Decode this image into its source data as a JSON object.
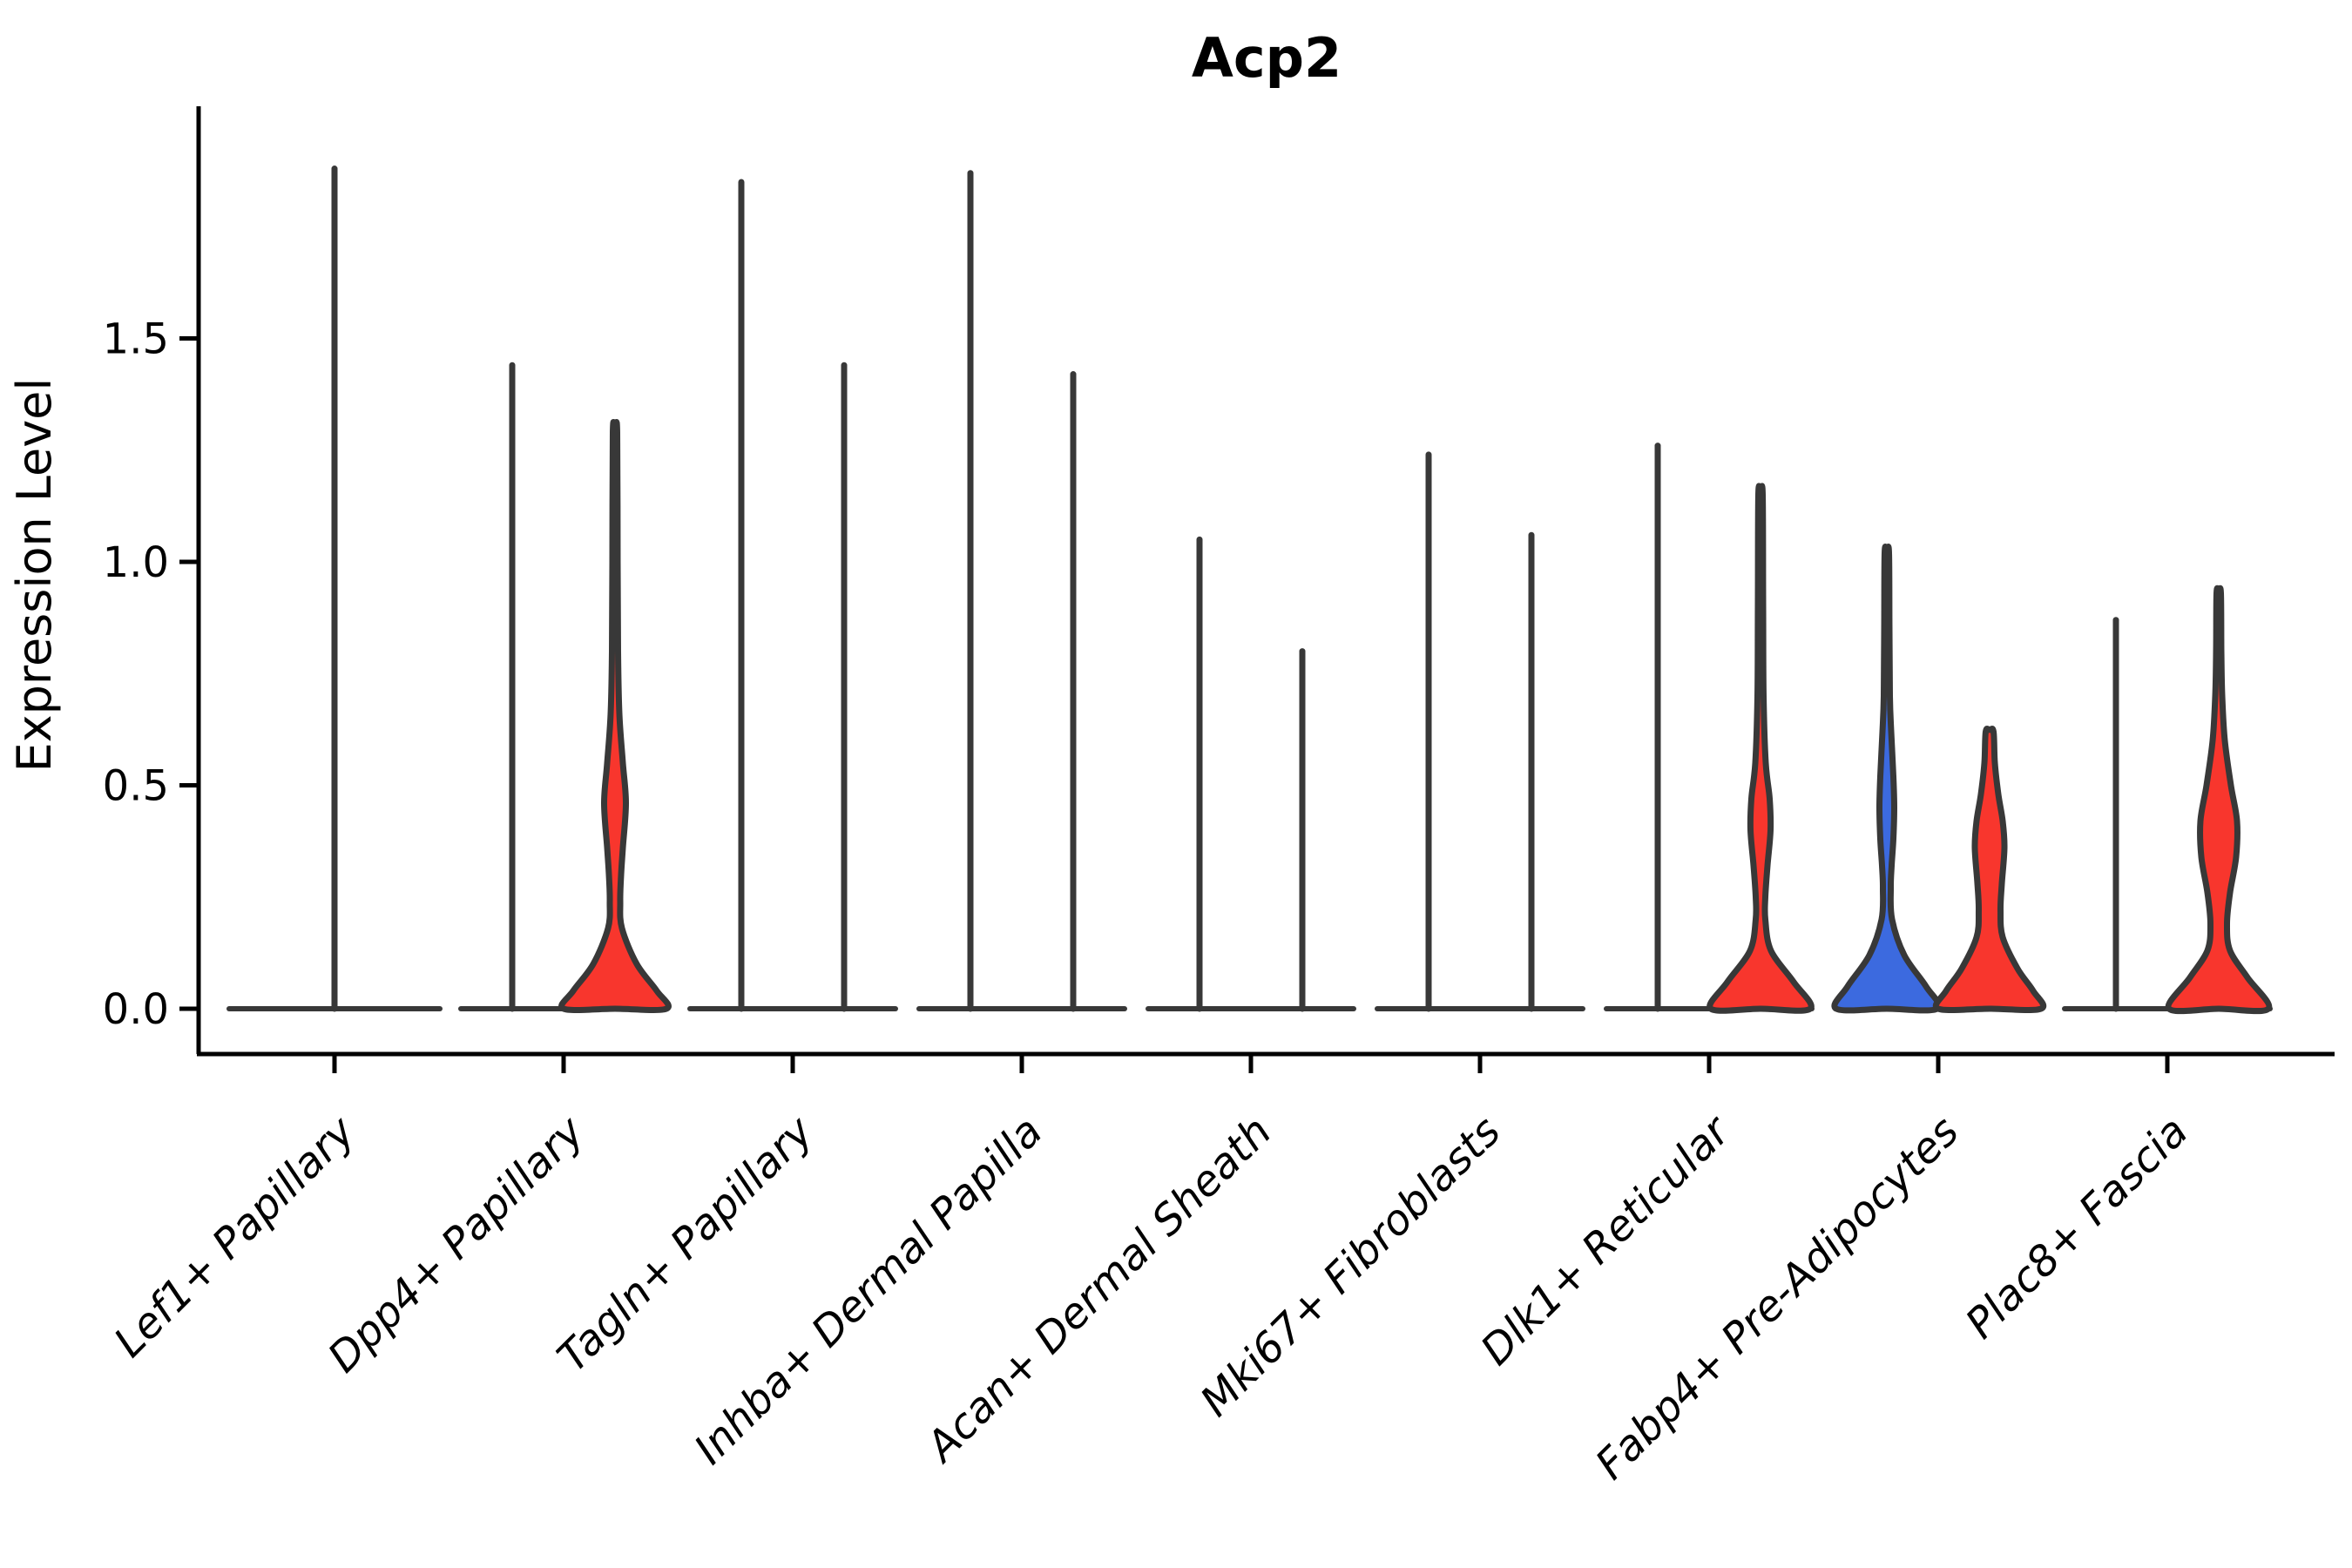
{
  "title": "Acp2",
  "y_axis": {
    "label": "Expression Level",
    "tick_labels": [
      "0.0",
      "0.5",
      "1.0",
      "1.5"
    ]
  },
  "colors": {
    "red": "#F8362D",
    "blue": "#3C6ADF",
    "outline": "#383838",
    "axis": "#000000",
    "text": "#000000",
    "background": "#FFFFFF"
  },
  "chart_data": {
    "type": "violin",
    "title": "Acp2",
    "xlabel": "",
    "ylabel": "Expression Level",
    "ylim": [
      0,
      1.95
    ],
    "yticks": [
      0.0,
      0.5,
      1.0,
      1.5
    ],
    "grid": false,
    "legend": "none",
    "categories": [
      "Lef1+ Papillary",
      "Dpp4+ Papillary",
      "Tagln+ Papillary",
      "Inhba+ Dermal Papilla",
      "Acan+ Dermal Sheath",
      "Mki67+ Fibroblasts",
      "Dlk1+ Reticular",
      "Fabp4+ Pre-Adipocytes",
      "Plac8+ Fascia"
    ],
    "groups": [
      {
        "category": "Lef1+ Papillary",
        "violins": [
          {
            "position": "center",
            "fill": "white",
            "shape": "spike",
            "max_expression": 1.88,
            "base_halfwidth": 121
          }
        ]
      },
      {
        "category": "Dpp4+ Papillary",
        "violins": [
          {
            "position": "left",
            "fill": "white",
            "shape": "spike",
            "max_expression": 1.44
          },
          {
            "position": "right",
            "fill": "red",
            "shape": "density",
            "max_expression": 1.29,
            "profile": [
              [
                1.29,
                2.5
              ],
              [
                1.0,
                3
              ],
              [
                0.8,
                3.5
              ],
              [
                0.66,
                5
              ],
              [
                0.55,
                9
              ],
              [
                0.46,
                12.5
              ],
              [
                0.36,
                9
              ],
              [
                0.3,
                7
              ],
              [
                0.24,
                6
              ],
              [
                0.18,
                8
              ],
              [
                0.1,
                25
              ],
              [
                0.04,
                48
              ],
              [
                0.0,
                59
              ]
            ]
          }
        ]
      },
      {
        "category": "Tagln+ Papillary",
        "violins": [
          {
            "position": "left",
            "fill": "white",
            "shape": "spike",
            "max_expression": 1.85
          },
          {
            "position": "right",
            "fill": "white",
            "shape": "spike",
            "max_expression": 1.44
          }
        ]
      },
      {
        "category": "Inhba+ Dermal Papilla",
        "violins": [
          {
            "position": "left",
            "fill": "white",
            "shape": "spike",
            "max_expression": 1.87
          },
          {
            "position": "right",
            "fill": "white",
            "shape": "spike",
            "max_expression": 1.42
          }
        ]
      },
      {
        "category": "Acan+ Dermal Sheath",
        "violins": [
          {
            "position": "left",
            "fill": "white",
            "shape": "spike",
            "max_expression": 1.05
          },
          {
            "position": "right",
            "fill": "white",
            "shape": "spike",
            "max_expression": 0.8
          }
        ]
      },
      {
        "category": "Mki67+ Fibroblasts",
        "violins": [
          {
            "position": "left",
            "fill": "white",
            "shape": "spike",
            "max_expression": 1.24
          },
          {
            "position": "right",
            "fill": "white",
            "shape": "spike",
            "max_expression": 1.06
          }
        ]
      },
      {
        "category": "Dlk1+ Reticular",
        "violins": [
          {
            "position": "left",
            "fill": "white",
            "shape": "spike",
            "max_expression": 1.26
          },
          {
            "position": "right",
            "fill": "red",
            "shape": "density",
            "max_expression": 1.15,
            "profile": [
              [
                1.15,
                2.5
              ],
              [
                0.9,
                3
              ],
              [
                0.7,
                3.5
              ],
              [
                0.55,
                6
              ],
              [
                0.47,
                10.5
              ],
              [
                0.4,
                11.5
              ],
              [
                0.32,
                8
              ],
              [
                0.25,
                5.5
              ],
              [
                0.2,
                5.5
              ],
              [
                0.13,
                12
              ],
              [
                0.06,
                38
              ],
              [
                0.0,
                57
              ]
            ]
          }
        ]
      },
      {
        "category": "Fabp4+ Pre-Adipocytes",
        "violins": [
          {
            "position": "left",
            "fill": "blue",
            "shape": "density",
            "max_expression": 1.02,
            "profile": [
              [
                1.02,
                2.5
              ],
              [
                0.85,
                3
              ],
              [
                0.7,
                3.5
              ],
              [
                0.62,
                5
              ],
              [
                0.52,
                7.5
              ],
              [
                0.45,
                8.5
              ],
              [
                0.38,
                7.5
              ],
              [
                0.32,
                5.5
              ],
              [
                0.27,
                4.5
              ],
              [
                0.2,
                6
              ],
              [
                0.12,
                20
              ],
              [
                0.05,
                45
              ],
              [
                0.0,
                58
              ]
            ]
          },
          {
            "position": "right",
            "fill": "red",
            "shape": "density",
            "max_expression": 0.62,
            "profile": [
              [
                0.62,
                4.5
              ],
              [
                0.55,
                6
              ],
              [
                0.48,
                10
              ],
              [
                0.42,
                15
              ],
              [
                0.36,
                17
              ],
              [
                0.28,
                14
              ],
              [
                0.22,
                12.5
              ],
              [
                0.16,
                15
              ],
              [
                0.09,
                32
              ],
              [
                0.04,
                50
              ],
              [
                0.0,
                59
              ]
            ]
          }
        ]
      },
      {
        "category": "Plac8+ Fascia",
        "violins": [
          {
            "position": "left",
            "fill": "white",
            "shape": "spike",
            "max_expression": 0.87
          },
          {
            "position": "right",
            "fill": "red",
            "shape": "density",
            "max_expression": 0.93,
            "profile": [
              [
                0.93,
                2.5
              ],
              [
                0.8,
                3
              ],
              [
                0.7,
                4
              ],
              [
                0.6,
                7
              ],
              [
                0.5,
                14
              ],
              [
                0.42,
                21
              ],
              [
                0.34,
                20
              ],
              [
                0.26,
                13
              ],
              [
                0.19,
                9.5
              ],
              [
                0.13,
                13
              ],
              [
                0.07,
                33
              ],
              [
                0.0,
                57
              ]
            ]
          }
        ]
      }
    ]
  }
}
